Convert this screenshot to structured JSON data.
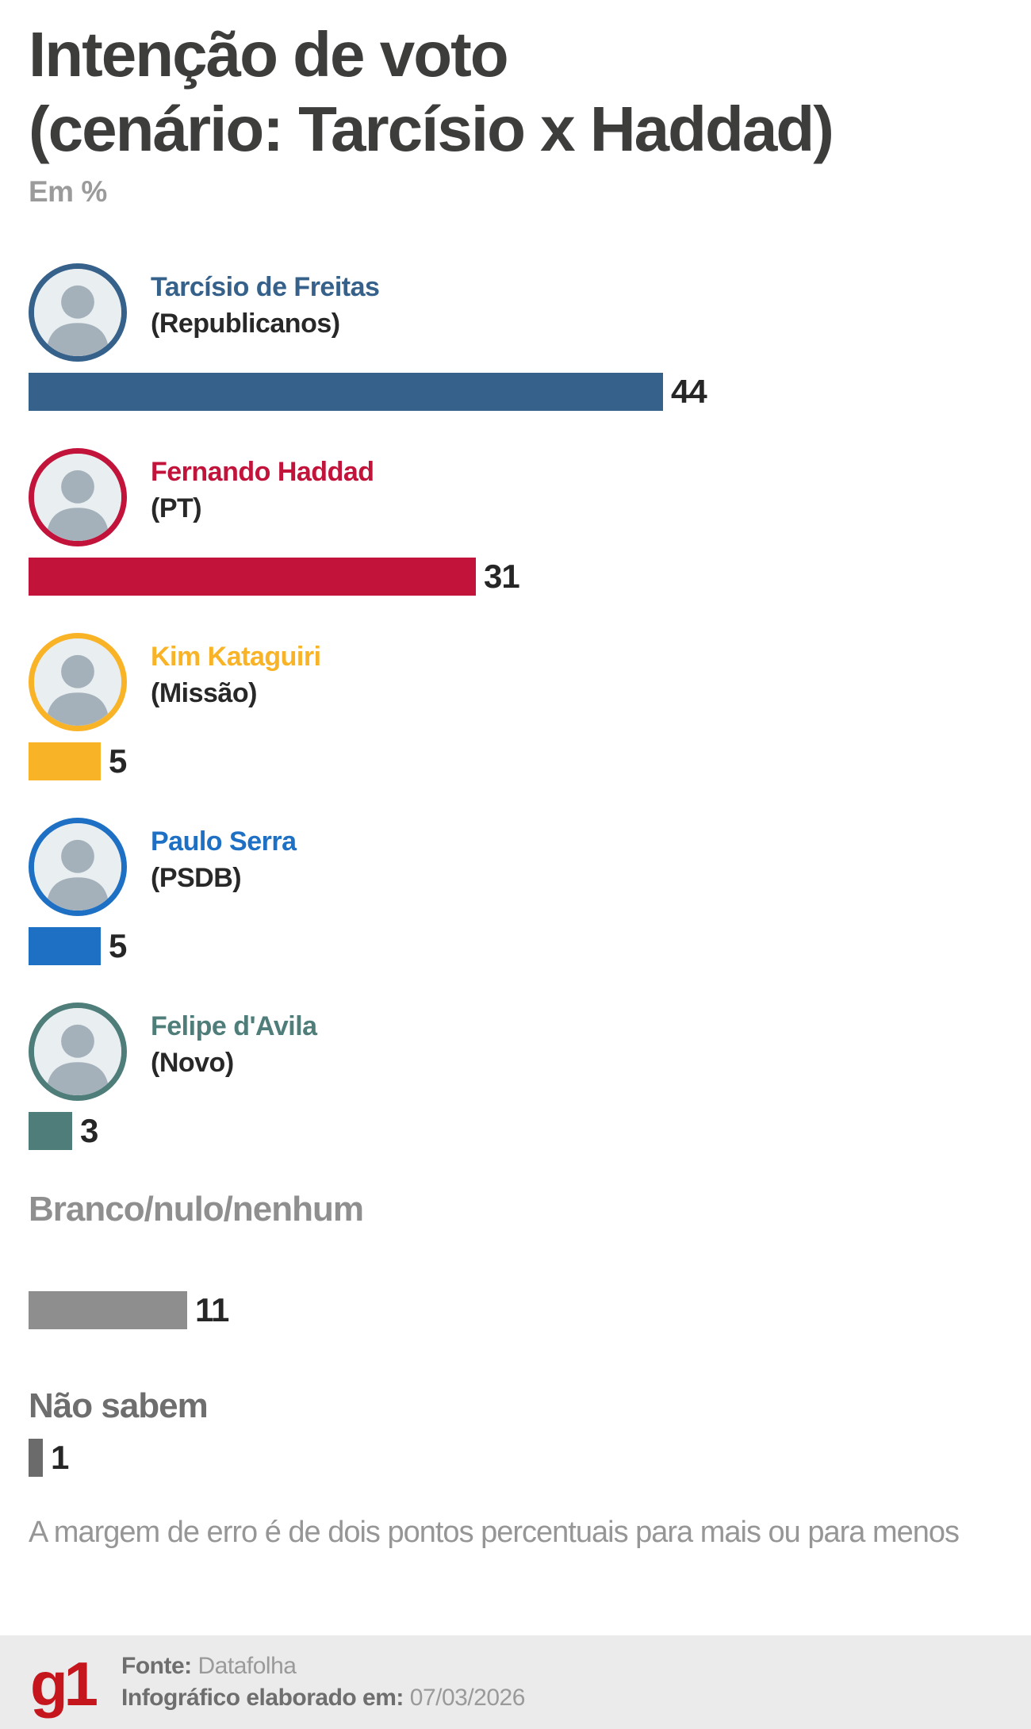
{
  "title_lines": [
    "Intenção de voto",
    "(cenário: Tarcísio x Haddad)"
  ],
  "subtitle": "Em %",
  "chart_data": {
    "type": "bar",
    "orientation": "horizontal",
    "title": "Intenção de voto (cenário: Tarcísio x Haddad)",
    "unit_note": "Em %",
    "categories": [
      "Tarcísio de Freitas (Republicanos)",
      "Fernando Haddad (PT)",
      "Kim Kataguiri (Missão)",
      "Paulo Serra (PSDB)",
      "Felipe d'Avila (Novo)",
      "Branco/nulo/nenhum",
      "Não sabem"
    ],
    "values": [
      44,
      31,
      5,
      5,
      3,
      11,
      1
    ],
    "bar_colors": [
      "#35618A",
      "#C2133B",
      "#F9B327",
      "#1E70C4",
      "#4F7E7A",
      "#8E8E8E",
      "#6B6B6B"
    ],
    "xlim": [
      0,
      44
    ],
    "grid": false,
    "legend": "none",
    "value_labels": true
  },
  "rows": [
    {
      "type": "candidate",
      "name": "Tarcísio de Freitas",
      "party": "(Republicanos)",
      "value": 44,
      "color": "#35618A"
    },
    {
      "type": "candidate",
      "name": "Fernando Haddad",
      "party": "(PT)",
      "value": 31,
      "color": "#C2133B"
    },
    {
      "type": "candidate",
      "name": "Kim Kataguiri",
      "party": "(Missão)",
      "value": 5,
      "color": "#F9B327"
    },
    {
      "type": "candidate",
      "name": "Paulo Serra",
      "party": "(PSDB)",
      "value": 5,
      "color": "#1E70C4"
    },
    {
      "type": "candidate",
      "name": "Felipe d'Avila",
      "party": "(Novo)",
      "value": 3,
      "color": "#4F7E7A"
    },
    {
      "type": "simple",
      "label": "Branco/nulo/nenhum",
      "value": 11,
      "color": "#8E8E8E",
      "label_color": "#8F8F8F"
    },
    {
      "type": "simple",
      "label": "Não sabem",
      "value": 1,
      "color": "#6B6B6B",
      "label_color": "#6E6E6E"
    }
  ],
  "footnote": "A margem de erro é de dois pontos percentuais para mais ou para menos",
  "footer": {
    "logo": "g1",
    "logo_color": "#C4161C",
    "source_label": "Fonte:",
    "source": "Datafolha",
    "elaborated_label": "Infográfico elaborado em:",
    "date": "07/03/2026"
  }
}
